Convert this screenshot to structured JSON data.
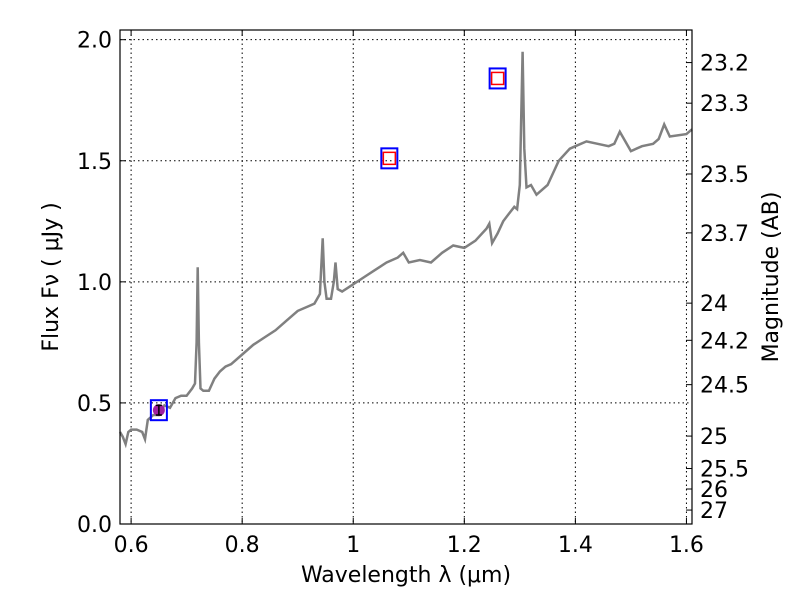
{
  "chart_data": {
    "type": "line",
    "xlabel": "Wavelength  λ (μm)",
    "ylabel": "Flux  Fν  ( μJy )",
    "y2label": "Magnitude (AB)",
    "xlim": [
      0.58,
      1.61
    ],
    "ylim": [
      0.0,
      2.04
    ],
    "grid": true,
    "x_ticks": [
      0.6,
      0.8,
      1.0,
      1.2,
      1.4,
      1.6
    ],
    "x_tick_labels": [
      "0.6",
      "0.8",
      "1",
      "1.2",
      "1.4",
      "1.6"
    ],
    "y_ticks": [
      0.0,
      0.5,
      1.0,
      1.5,
      2.0
    ],
    "y_tick_labels": [
      "0.0",
      "0.5",
      "1.0",
      "1.5",
      "2.0"
    ],
    "mag_ticks": [
      "23.2",
      "23.3",
      "23.5",
      "23.7",
      "24",
      "24.2",
      "24.5",
      "25",
      "25.5",
      "26",
      "27"
    ],
    "spectrum_color": "#808080",
    "box_outer_color": "#0000ff",
    "box_inner_color": "#ff0000",
    "point_fill_color": "#a020a0",
    "spectrum": {
      "x": [
        0.58,
        0.585,
        0.59,
        0.595,
        0.6,
        0.61,
        0.62,
        0.625,
        0.63,
        0.64,
        0.65,
        0.66,
        0.67,
        0.68,
        0.69,
        0.7,
        0.71,
        0.715,
        0.718,
        0.72,
        0.722,
        0.725,
        0.73,
        0.74,
        0.75,
        0.76,
        0.77,
        0.78,
        0.8,
        0.82,
        0.84,
        0.86,
        0.88,
        0.9,
        0.92,
        0.93,
        0.94,
        0.945,
        0.948,
        0.952,
        0.96,
        0.965,
        0.968,
        0.972,
        0.98,
        1.0,
        1.02,
        1.04,
        1.06,
        1.08,
        1.09,
        1.1,
        1.12,
        1.14,
        1.16,
        1.18,
        1.2,
        1.22,
        1.24,
        1.245,
        1.25,
        1.26,
        1.27,
        1.28,
        1.29,
        1.295,
        1.3,
        1.305,
        1.308,
        1.312,
        1.32,
        1.33,
        1.35,
        1.37,
        1.39,
        1.4,
        1.42,
        1.44,
        1.46,
        1.47,
        1.48,
        1.5,
        1.52,
        1.54,
        1.55,
        1.56,
        1.57,
        1.6,
        1.61
      ],
      "y": [
        0.38,
        0.36,
        0.33,
        0.38,
        0.39,
        0.39,
        0.38,
        0.35,
        0.43,
        0.45,
        0.45,
        0.49,
        0.48,
        0.52,
        0.53,
        0.53,
        0.56,
        0.58,
        0.75,
        1.06,
        0.75,
        0.56,
        0.55,
        0.55,
        0.6,
        0.63,
        0.65,
        0.66,
        0.7,
        0.74,
        0.77,
        0.8,
        0.84,
        0.88,
        0.9,
        0.91,
        0.95,
        1.18,
        1.0,
        0.93,
        0.93,
        1.0,
        1.08,
        0.97,
        0.96,
        0.99,
        1.02,
        1.05,
        1.08,
        1.1,
        1.12,
        1.08,
        1.09,
        1.08,
        1.12,
        1.15,
        1.14,
        1.17,
        1.22,
        1.24,
        1.16,
        1.2,
        1.25,
        1.28,
        1.31,
        1.3,
        1.4,
        1.95,
        1.55,
        1.39,
        1.4,
        1.36,
        1.4,
        1.5,
        1.55,
        1.56,
        1.58,
        1.57,
        1.56,
        1.57,
        1.62,
        1.54,
        1.56,
        1.57,
        1.59,
        1.65,
        1.6,
        1.61,
        1.63
      ]
    },
    "photometry": [
      {
        "x": 0.65,
        "y": 0.47,
        "yerr": 0.02
      },
      {
        "x": 1.065,
        "y": 1.51
      },
      {
        "x": 1.26,
        "y": 1.84
      }
    ]
  }
}
